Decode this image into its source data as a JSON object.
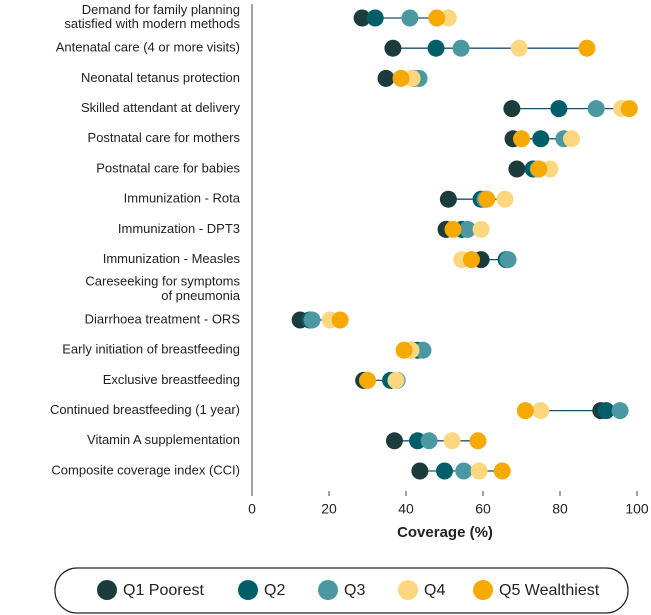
{
  "chart_data": {
    "type": "dot",
    "xlabel": "Coverage (%)",
    "categories": [
      "Demand for family planning\nsatisfied with modern methods",
      "Antenatal care (4 or more visits)",
      "Neonatal tetanus protection",
      "Skilled attendant at delivery",
      "Postnatal care for mothers",
      "Postnatal care for babies",
      "Immunization - Rota",
      "Immunization - DPT3",
      "Immunization - Measles",
      "Careseeking for symptoms\nof pneumonia",
      "Diarrhoea treatment - ORS",
      "Early initiation of breastfeeding",
      "Exclusive breastfeeding",
      "Continued breastfeeding (1 year)",
      "Vitamin A supplementation",
      "Composite coverage index (CCI)"
    ],
    "series": [
      {
        "name": "Q1 Poorest",
        "color": "#1b3b3d",
        "values": [
          28.6,
          36.6,
          34.8,
          67.5,
          67.8,
          68.8,
          51,
          50.4,
          59.5,
          null,
          12.5,
          41.3,
          29,
          90.6,
          37,
          43.6
        ]
      },
      {
        "name": "Q2",
        "color": "#005e69",
        "values": [
          32,
          47.8,
          42,
          79.7,
          75,
          73,
          59.5,
          54.5,
          66,
          null,
          15,
          43,
          36,
          92,
          43,
          50
        ]
      },
      {
        "name": "Q3",
        "color": "#4b98a3",
        "values": [
          41,
          54.3,
          43.4,
          89.4,
          81,
          74.3,
          60.5,
          56,
          66.5,
          null,
          15.6,
          44.4,
          37.7,
          95.6,
          46,
          55
        ]
      },
      {
        "name": "Q4",
        "color": "#fdd77f",
        "values": [
          51,
          69.4,
          41.6,
          96,
          83,
          77.4,
          65.7,
          59.5,
          54.5,
          null,
          20.3,
          41.3,
          37.4,
          75,
          52,
          59
        ]
      },
      {
        "name": "Q5 Wealthiest",
        "color": "#f6a900",
        "values": [
          48,
          87,
          38.7,
          98,
          70,
          74.5,
          61,
          52.2,
          57,
          null,
          22.9,
          39.5,
          30,
          71,
          58.7,
          65
        ]
      }
    ],
    "xlim": [
      0,
      100
    ],
    "xticks": [
      0,
      20,
      40,
      60,
      80,
      100
    ]
  }
}
